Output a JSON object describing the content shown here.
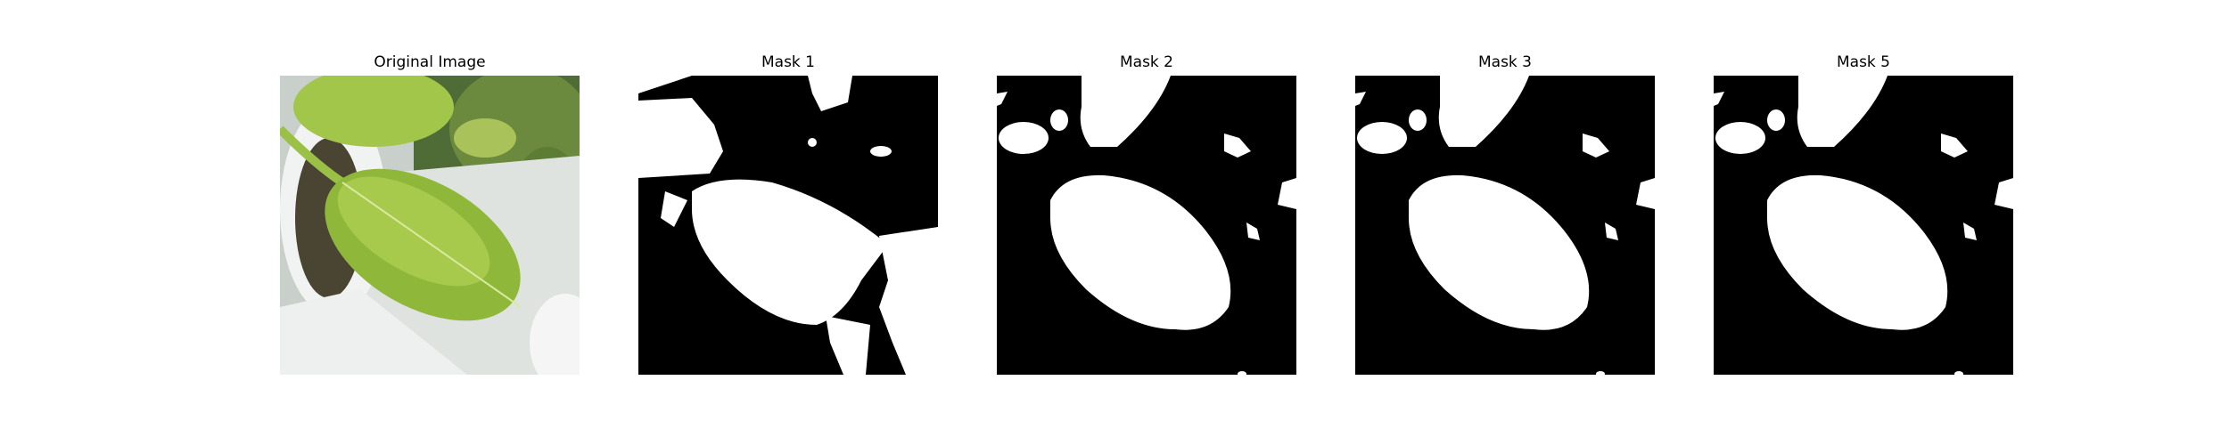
{
  "panels": [
    {
      "title": "Original Image",
      "kind": "photo"
    },
    {
      "title": "Mask 1",
      "kind": "mask"
    },
    {
      "title": "Mask 2",
      "kind": "mask"
    },
    {
      "title": "Mask 3",
      "kind": "mask"
    },
    {
      "title": "Mask 5",
      "kind": "mask"
    }
  ],
  "colors": {
    "mask_background": "#000000",
    "mask_foreground": "#ffffff",
    "leaf_green": "#8fb83a",
    "leaf_light": "#b7d55a",
    "pot_white": "#e9eceb",
    "soil_dark": "#4a4433"
  }
}
